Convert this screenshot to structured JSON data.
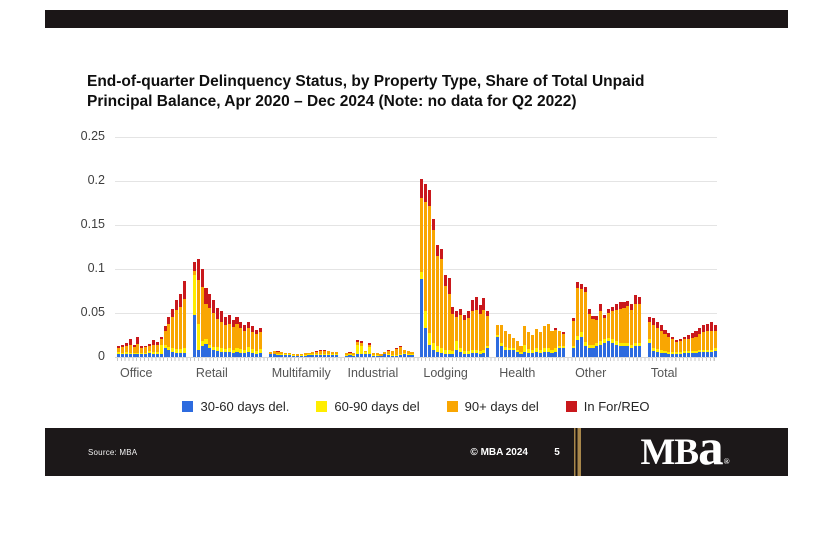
{
  "title": {
    "line1": "End-of-quarter Delinquency Status, by Property Type, Share of Total Unpaid",
    "line2": "Principal Balance, Apr 2020 – Dec 2024 (Note: no data for Q2 2022)"
  },
  "legend": {
    "items": [
      {
        "label": "30-60 days del.",
        "color": "#2d6bdf"
      },
      {
        "label": "60-90 days del",
        "color": "#ffed00"
      },
      {
        "label": "90+ days del",
        "color": "#f9a602"
      },
      {
        "label": "In For/REO",
        "color": "#c9181c"
      }
    ]
  },
  "footer": {
    "source": "Source: MBA",
    "copyright": "© MBA 2024",
    "page_number": "5",
    "logo": {
      "mb": "MB",
      "a": "a",
      "reg": "®"
    },
    "gold_color": "#a8874b"
  },
  "chart_data": {
    "type": "bar",
    "stacked": true,
    "title": "End-of-quarter Delinquency Status, by Property Type, Share of Total Unpaid Principal Balance, Apr 2020 – Dec 2024 (Note: no data for Q2 2022)",
    "xlabel": "",
    "ylabel": "",
    "ylim": [
      0,
      0.25
    ],
    "y_ticks": [
      "0.25",
      "0.2",
      "0.15",
      "0.1",
      "0.05",
      "0"
    ],
    "grid": true,
    "legend_position": "bottom",
    "bars_per_group": 18,
    "series_names": [
      "30-60 days del.",
      "60-90 days del",
      "90+ days del",
      "In For/REO"
    ],
    "colors": {
      "blue": "#2d6bdf",
      "yellow": "#ffed00",
      "orange": "#f9a602",
      "red": "#c9181c"
    },
    "segment_order": [
      "blue",
      "yellow",
      "orange",
      "red"
    ],
    "groups": [
      {
        "label": "Office",
        "bars": [
          [
            0.004,
            0.002,
            0.004,
            0.002
          ],
          [
            0.003,
            0.002,
            0.006,
            0.003
          ],
          [
            0.004,
            0.002,
            0.007,
            0.003
          ],
          [
            0.003,
            0.002,
            0.009,
            0.007
          ],
          [
            0.003,
            0.002,
            0.006,
            0.003
          ],
          [
            0.003,
            0.002,
            0.01,
            0.008
          ],
          [
            0.003,
            0.002,
            0.005,
            0.002
          ],
          [
            0.003,
            0.002,
            0.006,
            0.002
          ],
          [
            0.005,
            0.002,
            0.006,
            0.002
          ],
          [
            0.004,
            0.002,
            0.008,
            0.005
          ],
          [
            0.004,
            0.002,
            0.008,
            0.003
          ],
          [
            0.004,
            0.01,
            0.006,
            0.003
          ],
          [
            0.01,
            0.004,
            0.016,
            0.005
          ],
          [
            0.008,
            0.004,
            0.026,
            0.008
          ],
          [
            0.006,
            0.004,
            0.035,
            0.01
          ],
          [
            0.005,
            0.004,
            0.044,
            0.012
          ],
          [
            0.005,
            0.004,
            0.048,
            0.015
          ],
          [
            0.005,
            0.005,
            0.056,
            0.02
          ]
        ]
      },
      {
        "label": "Retail",
        "bars": [
          [
            0.048,
            0.045,
            0.005,
            0.01
          ],
          [
            0.008,
            0.03,
            0.05,
            0.024
          ],
          [
            0.012,
            0.006,
            0.062,
            0.02
          ],
          [
            0.015,
            0.005,
            0.04,
            0.018
          ],
          [
            0.01,
            0.004,
            0.042,
            0.016
          ],
          [
            0.008,
            0.004,
            0.038,
            0.015
          ],
          [
            0.007,
            0.004,
            0.032,
            0.013
          ],
          [
            0.006,
            0.004,
            0.03,
            0.012
          ],
          [
            0.006,
            0.003,
            0.027,
            0.01
          ],
          [
            0.006,
            0.004,
            0.028,
            0.01
          ],
          [
            0.005,
            0.003,
            0.026,
            0.008
          ],
          [
            0.006,
            0.004,
            0.027,
            0.009
          ],
          [
            0.005,
            0.004,
            0.024,
            0.007
          ],
          [
            0.005,
            0.003,
            0.022,
            0.006
          ],
          [
            0.006,
            0.005,
            0.022,
            0.007
          ],
          [
            0.005,
            0.004,
            0.02,
            0.006
          ],
          [
            0.004,
            0.003,
            0.019,
            0.005
          ],
          [
            0.005,
            0.004,
            0.019,
            0.005
          ]
        ]
      },
      {
        "label": "Multifamily",
        "bars": [
          [
            0.003,
            0.001,
            0.002,
            0
          ],
          [
            0.003,
            0.001,
            0.003,
            0
          ],
          [
            0.002,
            0.001,
            0.003,
            0.001
          ],
          [
            0.002,
            0.001,
            0.003,
            0
          ],
          [
            0.002,
            0.001,
            0.002,
            0
          ],
          [
            0.002,
            0.001,
            0.001,
            0
          ],
          [
            0.001,
            0.001,
            0.0015,
            0
          ],
          [
            0.001,
            0.0005,
            0.0015,
            0
          ],
          [
            0.0015,
            0.0005,
            0.002,
            0
          ],
          [
            0.0015,
            0.001,
            0.002,
            0
          ],
          [
            0.002,
            0.001,
            0.002,
            0
          ],
          [
            0.002,
            0.001,
            0.0025,
            0
          ],
          [
            0.002,
            0.001,
            0.003,
            0.001
          ],
          [
            0.002,
            0.001,
            0.0035,
            0.001
          ],
          [
            0.002,
            0.001,
            0.004,
            0.001
          ],
          [
            0.002,
            0.001,
            0.0035,
            0
          ],
          [
            0.002,
            0.001,
            0.003,
            0
          ],
          [
            0.002,
            0.001,
            0.0025,
            0
          ]
        ]
      },
      {
        "label": "Industrial",
        "bars": [
          [
            0.001,
            0.001,
            0.002,
            0
          ],
          [
            0.002,
            0.001,
            0.002,
            0.001
          ],
          [
            0.001,
            0.001,
            0.003,
            0
          ],
          [
            0.004,
            0.01,
            0.003,
            0.002
          ],
          [
            0.004,
            0.009,
            0.003,
            0.002
          ],
          [
            0.003,
            0.003,
            0.001,
            0
          ],
          [
            0.004,
            0.008,
            0.002,
            0.002
          ],
          [
            0.001,
            0.001,
            0.003,
            0
          ],
          [
            0.001,
            0.001,
            0.002,
            0
          ],
          [
            0.001,
            0.0005,
            0.0015,
            0
          ],
          [
            0.003,
            0.001,
            0.002,
            0
          ],
          [
            0.002,
            0.001,
            0.004,
            0.001
          ],
          [
            0.001,
            0.001,
            0.005,
            0
          ],
          [
            0.001,
            0.001,
            0.007,
            0.001
          ],
          [
            0.002,
            0.001,
            0.008,
            0.001
          ],
          [
            0.004,
            0.001,
            0.003,
            0
          ],
          [
            0.002,
            0.001,
            0.004,
            0
          ],
          [
            0.002,
            0.001,
            0.003,
            0
          ]
        ]
      },
      {
        "label": "Lodging",
        "bars": [
          [
            0.089,
            0.008,
            0.084,
            0.021
          ],
          [
            0.033,
            0.019,
            0.124,
            0.021
          ],
          [
            0.014,
            0.013,
            0.145,
            0.018
          ],
          [
            0.008,
            0.008,
            0.128,
            0.013
          ],
          [
            0.006,
            0.006,
            0.103,
            0.012
          ],
          [
            0.005,
            0.005,
            0.101,
            0.012
          ],
          [
            0.004,
            0.004,
            0.073,
            0.012
          ],
          [
            0.004,
            0.004,
            0.064,
            0.018
          ],
          [
            0.004,
            0.003,
            0.042,
            0.008
          ],
          [
            0.008,
            0.01,
            0.028,
            0.006
          ],
          [
            0.006,
            0.004,
            0.038,
            0.007
          ],
          [
            0.004,
            0.003,
            0.035,
            0.006
          ],
          [
            0.004,
            0.003,
            0.038,
            0.008
          ],
          [
            0.005,
            0.003,
            0.044,
            0.013
          ],
          [
            0.005,
            0.003,
            0.046,
            0.014
          ],
          [
            0.004,
            0.003,
            0.042,
            0.01
          ],
          [
            0.005,
            0.003,
            0.046,
            0.013
          ],
          [
            0.01,
            0.003,
            0.034,
            0.005
          ]
        ]
      },
      {
        "label": "Health",
        "bars": [
          [
            0.023,
            0.002,
            0.011,
            0
          ],
          [
            0.012,
            0.004,
            0.02,
            0
          ],
          [
            0.008,
            0.003,
            0.019,
            0
          ],
          [
            0.008,
            0.002,
            0.016,
            0
          ],
          [
            0.008,
            0.002,
            0.012,
            0
          ],
          [
            0.006,
            0.002,
            0.01,
            0
          ],
          [
            0.004,
            0.002,
            0.007,
            0
          ],
          [
            0.006,
            0.008,
            0.021,
            0
          ],
          [
            0.005,
            0.004,
            0.019,
            0
          ],
          [
            0.005,
            0.003,
            0.017,
            0
          ],
          [
            0.006,
            0.004,
            0.022,
            0
          ],
          [
            0.005,
            0.003,
            0.02,
            0
          ],
          [
            0.006,
            0.004,
            0.025,
            0
          ],
          [
            0.006,
            0.004,
            0.027,
            0.001
          ],
          [
            0.005,
            0.003,
            0.022,
            0
          ],
          [
            0.006,
            0.004,
            0.021,
            0.002
          ],
          [
            0.01,
            0.003,
            0.017,
            0
          ],
          [
            0.01,
            0.003,
            0.013,
            0.002
          ]
        ]
      },
      {
        "label": "Other",
        "bars": [
          [
            0.01,
            0.003,
            0.028,
            0.004
          ],
          [
            0.019,
            0.005,
            0.055,
            0.006
          ],
          [
            0.023,
            0.005,
            0.049,
            0.006
          ],
          [
            0.012,
            0.005,
            0.057,
            0.006
          ],
          [
            0.01,
            0.004,
            0.035,
            0.006
          ],
          [
            0.01,
            0.004,
            0.029,
            0.004
          ],
          [
            0.012,
            0.004,
            0.026,
            0.005
          ],
          [
            0.014,
            0.004,
            0.034,
            0.008
          ],
          [
            0.016,
            0.004,
            0.024,
            0.004
          ],
          [
            0.018,
            0.004,
            0.028,
            0.005
          ],
          [
            0.016,
            0.004,
            0.032,
            0.005
          ],
          [
            0.014,
            0.004,
            0.036,
            0.006
          ],
          [
            0.012,
            0.004,
            0.039,
            0.008
          ],
          [
            0.012,
            0.004,
            0.04,
            0.006
          ],
          [
            0.012,
            0.004,
            0.042,
            0.006
          ],
          [
            0.01,
            0.004,
            0.04,
            0.006
          ],
          [
            0.012,
            0.004,
            0.044,
            0.01
          ],
          [
            0.012,
            0.004,
            0.044,
            0.008
          ]
        ]
      },
      {
        "label": "Total",
        "bars": [
          [
            0.016,
            0.004,
            0.02,
            0.005
          ],
          [
            0.007,
            0.003,
            0.026,
            0.008
          ],
          [
            0.006,
            0.003,
            0.024,
            0.007
          ],
          [
            0.005,
            0.003,
            0.022,
            0.006
          ],
          [
            0.005,
            0.002,
            0.019,
            0.005
          ],
          [
            0.004,
            0.002,
            0.017,
            0.004
          ],
          [
            0.004,
            0.002,
            0.014,
            0.003
          ],
          [
            0.004,
            0.002,
            0.011,
            0.002
          ],
          [
            0.004,
            0.002,
            0.012,
            0.003
          ],
          [
            0.005,
            0.002,
            0.013,
            0.003
          ],
          [
            0.005,
            0.002,
            0.014,
            0.004
          ],
          [
            0.005,
            0.002,
            0.015,
            0.005
          ],
          [
            0.005,
            0.002,
            0.016,
            0.006
          ],
          [
            0.006,
            0.002,
            0.018,
            0.007
          ],
          [
            0.006,
            0.002,
            0.02,
            0.008
          ],
          [
            0.006,
            0.002,
            0.021,
            0.009
          ],
          [
            0.006,
            0.002,
            0.022,
            0.01
          ],
          [
            0.007,
            0.003,
            0.02,
            0.006
          ]
        ]
      }
    ]
  }
}
